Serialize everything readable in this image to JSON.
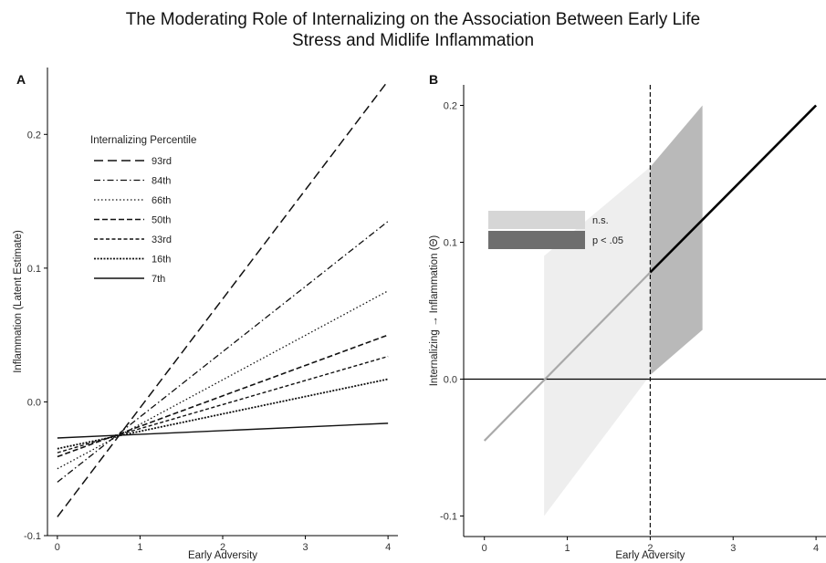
{
  "title": {
    "line1": "The Moderating Role of Internalizing on the Association Between Early Life",
    "line2": "Stress and Midlife Inflammation"
  },
  "chart_data": [
    {
      "panel": "A",
      "type": "line",
      "xlabel": "Early Adversity",
      "ylabel": "Inflammation (Latent Estimate)",
      "xlim": [
        -0.12,
        4.12
      ],
      "ylim": [
        -0.1,
        0.25
      ],
      "x_ticks": [
        0,
        1,
        2,
        3,
        4
      ],
      "y_ticks": [
        -0.1,
        0.0,
        0.1,
        0.2
      ],
      "y_tick_labels": [
        "-0.1",
        "0.0",
        "0.1",
        "0.2"
      ],
      "grid": false,
      "legend": {
        "title": "Internalizing Percentile",
        "position": "top-left"
      },
      "series": [
        {
          "name": "93rd",
          "dash": "long-dash",
          "x": [
            0,
            4
          ],
          "y": [
            -0.086,
            0.24
          ]
        },
        {
          "name": "84th",
          "dash": "dash-dot",
          "x": [
            0,
            4
          ],
          "y": [
            -0.06,
            0.135
          ]
        },
        {
          "name": "66th",
          "dash": "dotted",
          "x": [
            0,
            4
          ],
          "y": [
            -0.05,
            0.083
          ]
        },
        {
          "name": "50th",
          "dash": "dashed",
          "x": [
            0,
            4
          ],
          "y": [
            -0.041,
            0.05
          ]
        },
        {
          "name": "33rd",
          "dash": "short-dash",
          "x": [
            0,
            4
          ],
          "y": [
            -0.038,
            0.034
          ]
        },
        {
          "name": "16th",
          "dash": "dense-dot",
          "x": [
            0,
            4
          ],
          "y": [
            -0.035,
            0.017
          ]
        },
        {
          "name": "7th",
          "dash": "solid",
          "x": [
            0,
            4
          ],
          "y": [
            -0.027,
            -0.016
          ]
        }
      ]
    },
    {
      "panel": "B",
      "type": "line",
      "xlabel": "Early Adversity",
      "ylabel": "Internalizing → Inflammation (Θ)",
      "xlim": [
        -0.25,
        4.12
      ],
      "ylim": [
        -0.115,
        0.215
      ],
      "x_ticks": [
        0,
        1,
        2,
        3,
        4
      ],
      "y_ticks": [
        -0.1,
        0.0,
        0.1,
        0.2
      ],
      "y_tick_labels": [
        "-0.1",
        "0.0",
        "0.1",
        "0.2"
      ],
      "grid": false,
      "reference_hline": 0.0,
      "reference_vline": 2.0,
      "legend": {
        "position": "top-left",
        "items": [
          {
            "label": "n.s.",
            "color": "#d6d6d6"
          },
          {
            "label": "p < .05",
            "color": "#6e6e6e"
          }
        ]
      },
      "slope_line": {
        "ns_segment": {
          "x": [
            0,
            2
          ],
          "y": [
            -0.045,
            0.078
          ],
          "color": "#a9a9a9"
        },
        "sig_segment": {
          "x": [
            2,
            4
          ],
          "y": [
            0.078,
            0.2
          ],
          "color": "#000000"
        }
      },
      "confidence_band": {
        "ns_region": {
          "x": [
            0.72,
            2.0
          ],
          "lower": [
            -0.1,
            0.003
          ],
          "upper": [
            0.09,
            0.155
          ]
        },
        "sig_region": {
          "x": [
            2.0,
            2.63
          ],
          "lower": [
            0.003,
            0.036
          ],
          "upper": [
            0.155,
            0.2
          ]
        }
      }
    }
  ]
}
